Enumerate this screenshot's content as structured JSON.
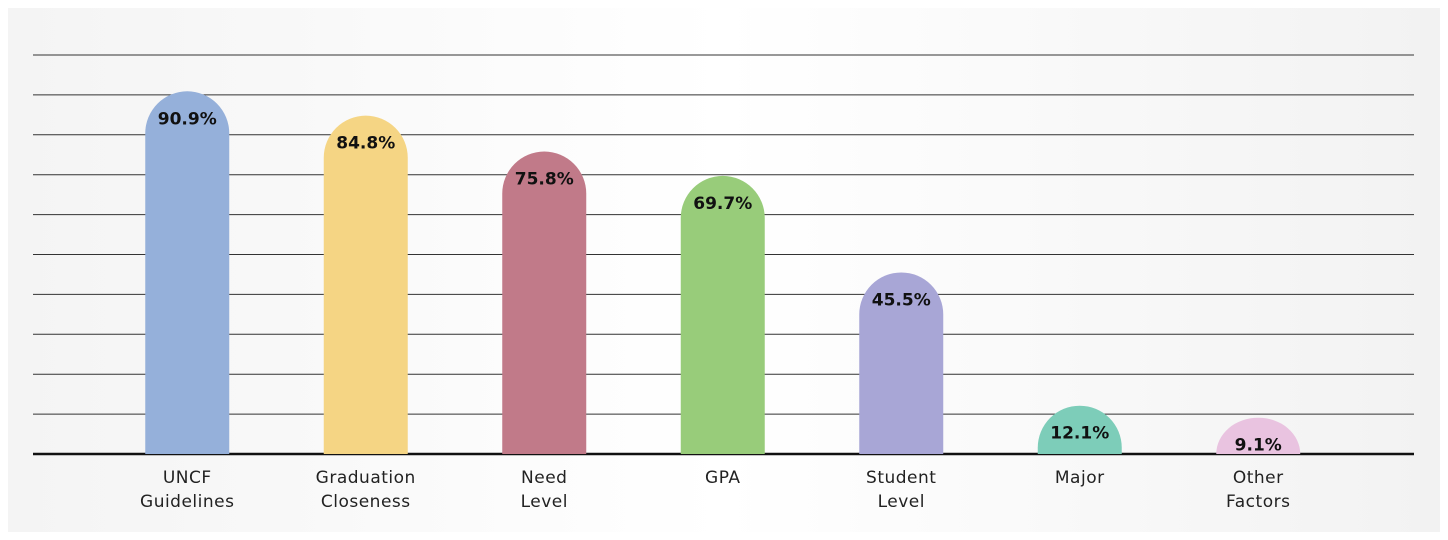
{
  "chart_data": {
    "type": "bar",
    "categories": [
      "UNCF Guidelines",
      "Graduation Closeness",
      "Need Level",
      "GPA",
      "Student Level",
      "Major",
      "Other Factors"
    ],
    "values": [
      90.9,
      84.8,
      75.8,
      69.7,
      45.5,
      12.1,
      9.1
    ],
    "value_labels": [
      "90.9%",
      "84.8%",
      "75.8%",
      "69.7%",
      "45.5%",
      "12.1%",
      "9.1%"
    ],
    "colors": [
      "#95b0da",
      "#f5d584",
      "#c17a89",
      "#98cc7a",
      "#a8a6d6",
      "#7dcdb9",
      "#e9c3e0"
    ],
    "ylim": [
      0,
      100
    ],
    "yticks": [
      0,
      10,
      20,
      30,
      40,
      50,
      60,
      70,
      80,
      90,
      100
    ],
    "grid": true
  }
}
